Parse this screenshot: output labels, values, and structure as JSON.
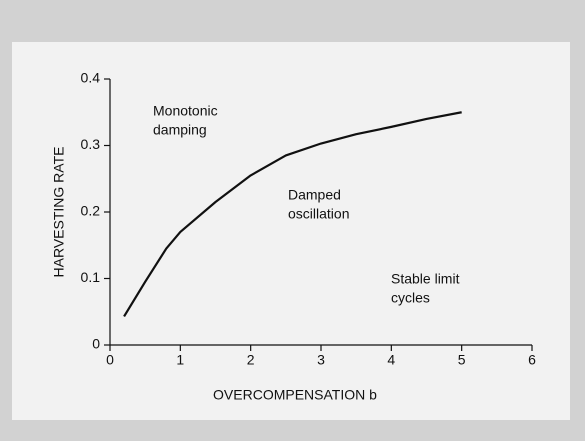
{
  "chart_data": {
    "type": "line",
    "xlabel": "OVERCOMPENSATION b",
    "ylabel": "HARVESTING RATE",
    "x": [
      0.2,
      0.5,
      0.8,
      1.0,
      1.5,
      2.0,
      2.5,
      3.0,
      3.5,
      4.0,
      4.5,
      5.0
    ],
    "series": [
      {
        "color": "#111111",
        "values": [
          0.043,
          0.095,
          0.145,
          0.17,
          0.215,
          0.255,
          0.285,
          0.303,
          0.317,
          0.328,
          0.34,
          0.35
        ]
      }
    ],
    "xlim": [
      0,
      6
    ],
    "xticks": [
      0,
      1,
      2,
      3,
      4,
      5,
      6
    ],
    "ylim": [
      0,
      0.4
    ],
    "yticks": [
      0,
      0.1,
      0.2,
      0.3,
      0.4
    ],
    "annotations": [
      {
        "lines": [
          "Monotonic",
          "damping"
        ]
      },
      {
        "lines": [
          "Damped",
          "oscillation"
        ]
      },
      {
        "lines": [
          "Stable limit",
          "cycles"
        ]
      }
    ]
  }
}
